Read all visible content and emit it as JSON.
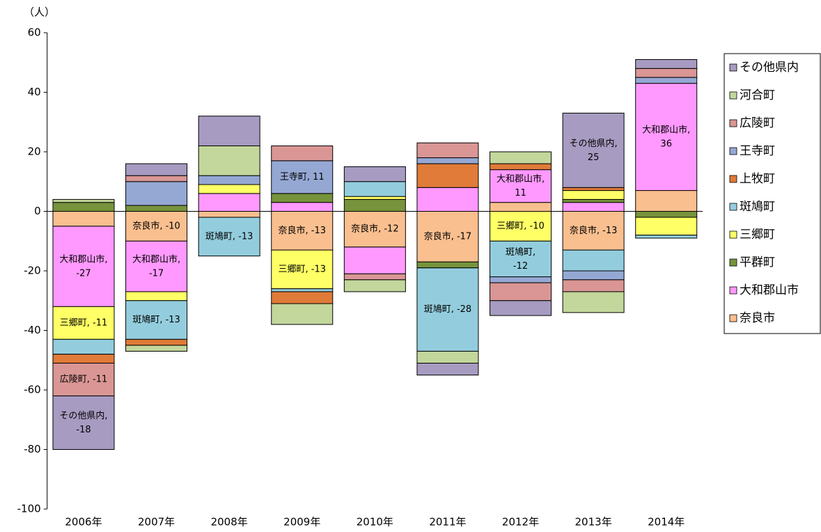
{
  "chart_data": {
    "type": "stacked-bar",
    "y_axis_label": "（人）",
    "categories": [
      "2006年",
      "2007年",
      "2008年",
      "2009年",
      "2010年",
      "2011年",
      "2012年",
      "2013年",
      "2014年"
    ],
    "ylim": [
      -100,
      60
    ],
    "yticks": [
      -100,
      -80,
      -60,
      -40,
      -20,
      0,
      20,
      40,
      60
    ],
    "legend_position": "right",
    "series": [
      {
        "name": "奈良市",
        "color": "#fabf8f",
        "values": [
          -5,
          -10,
          -2,
          -13,
          -12,
          -17,
          3,
          -13,
          7
        ],
        "value_labels": [
          null,
          "奈良市, -10",
          null,
          "奈良市, -13",
          "奈良市, -12",
          "奈良市, -17",
          null,
          "奈良市, -13",
          null
        ]
      },
      {
        "name": "大和郡山市",
        "color": "#ff99ff",
        "values": [
          -27,
          -17,
          6,
          3,
          -9,
          8,
          11,
          3,
          36
        ],
        "value_labels": [
          "大和郡山市,\n-27",
          "大和郡山市,\n-17",
          null,
          null,
          null,
          null,
          "大和郡山市,\n11",
          null,
          "大和郡山市,\n36"
        ]
      },
      {
        "name": "平群町",
        "color": "#77933c",
        "values": [
          3,
          2,
          0,
          3,
          4,
          -2,
          0,
          1,
          -2
        ]
      },
      {
        "name": "三郷町",
        "color": "#ffff66",
        "values": [
          -11,
          -3,
          3,
          -13,
          1,
          0,
          -10,
          3,
          -6
        ],
        "value_labels": [
          "三郷町, -11",
          null,
          null,
          "三郷町, -13",
          null,
          null,
          "三郷町, -10",
          null,
          null
        ]
      },
      {
        "name": "斑鳩町",
        "color": "#93cddd",
        "values": [
          -5,
          -13,
          -13,
          -1,
          5,
          -28,
          -12,
          -7,
          -1
        ],
        "value_labels": [
          null,
          "斑鳩町, -13",
          "斑鳩町, -13",
          null,
          null,
          "斑鳩町, -28",
          "斑鳩町,\n-12",
          null,
          null
        ]
      },
      {
        "name": "上牧町",
        "color": "#e07b39",
        "values": [
          -3,
          -2,
          0,
          -4,
          0,
          8,
          2,
          1,
          0
        ]
      },
      {
        "name": "王寺町",
        "color": "#95a8d3",
        "values": [
          0,
          8,
          3,
          11,
          0,
          2,
          -2,
          -3,
          2
        ],
        "value_labels": [
          null,
          null,
          null,
          "王寺町, 11",
          null,
          null,
          null,
          null,
          null
        ]
      },
      {
        "name": "広陵町",
        "color": "#d99694",
        "values": [
          -11,
          2,
          0,
          5,
          -2,
          5,
          -6,
          -4,
          3
        ],
        "value_labels": [
          "広陵町, -11",
          null,
          null,
          null,
          null,
          null,
          null,
          null,
          null
        ]
      },
      {
        "name": "河合町",
        "color": "#c3d69b",
        "values": [
          1,
          -2,
          10,
          -7,
          -4,
          -4,
          4,
          -7,
          0
        ]
      },
      {
        "name": "その他県内",
        "color": "#a79bc1",
        "values": [
          -18,
          4,
          10,
          0,
          5,
          -4,
          -5,
          25,
          3
        ],
        "value_labels": [
          "その他県内,\n-18",
          null,
          null,
          null,
          null,
          null,
          null,
          "その他県内,\n25",
          null
        ]
      }
    ]
  }
}
